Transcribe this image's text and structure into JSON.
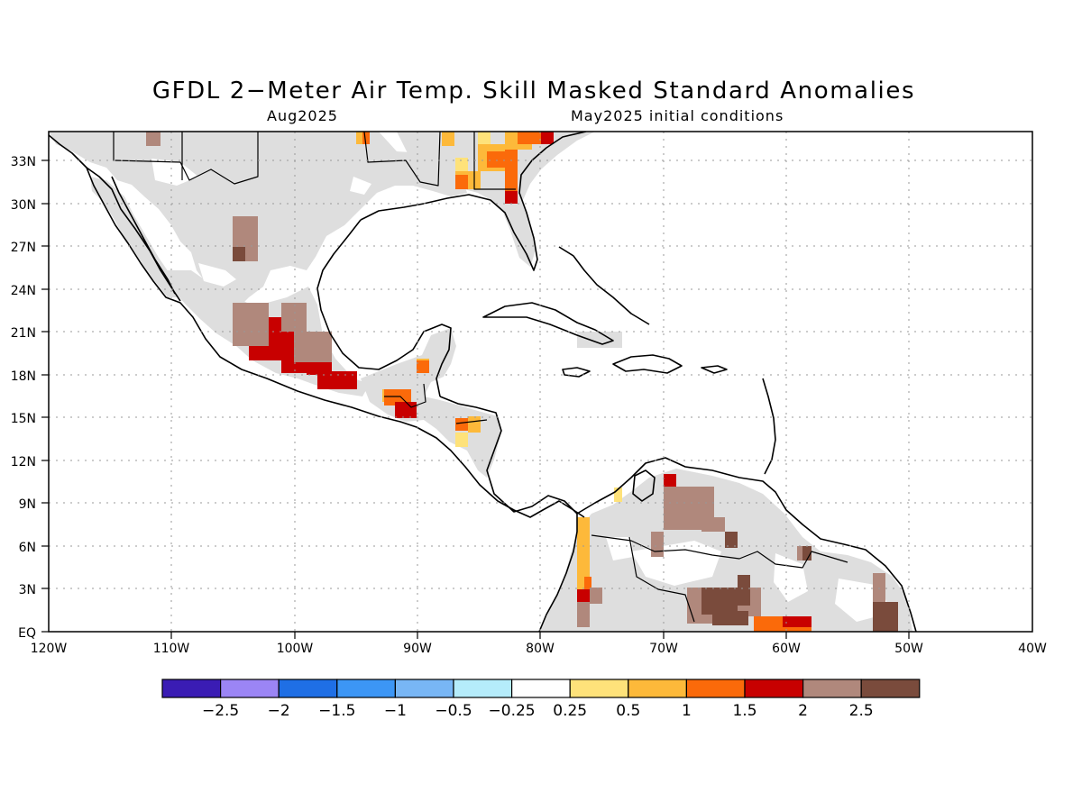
{
  "title": "GFDL 2−Meter Air Temp. Skill Masked Standard Anomalies",
  "subtitle_left": "Aug2025",
  "subtitle_right": "May2025 initial conditions",
  "lat_ticks": [
    "33N",
    "30N",
    "27N",
    "24N",
    "21N",
    "18N",
    "15N",
    "12N",
    "9N",
    "6N",
    "3N",
    "EQ"
  ],
  "lon_ticks": [
    "120W",
    "110W",
    "100W",
    "90W",
    "80W",
    "70W",
    "60W",
    "50W",
    "40W"
  ],
  "colorbar": {
    "colors": [
      "#3a1cb4",
      "#9b85f5",
      "#1f6fe5",
      "#3c96f5",
      "#78b6f5",
      "#b5ecfb",
      "#ffffff",
      "#fee27a",
      "#fdb93a",
      "#fb6a0a",
      "#c80000",
      "#b0887c",
      "#7a4b3c"
    ],
    "labels": [
      "−2.5",
      "−2",
      "−1.5",
      "−1",
      "−0.5",
      "−0.25",
      "0.25",
      "0.5",
      "1",
      "1.5",
      "2",
      "2.5"
    ]
  },
  "map": {
    "extent": {
      "lon": [
        -120,
        -40
      ],
      "lat": [
        0,
        35
      ]
    },
    "mask_color": "#dedede",
    "land_color": "#ffffff",
    "coast_color": "#000000"
  }
}
